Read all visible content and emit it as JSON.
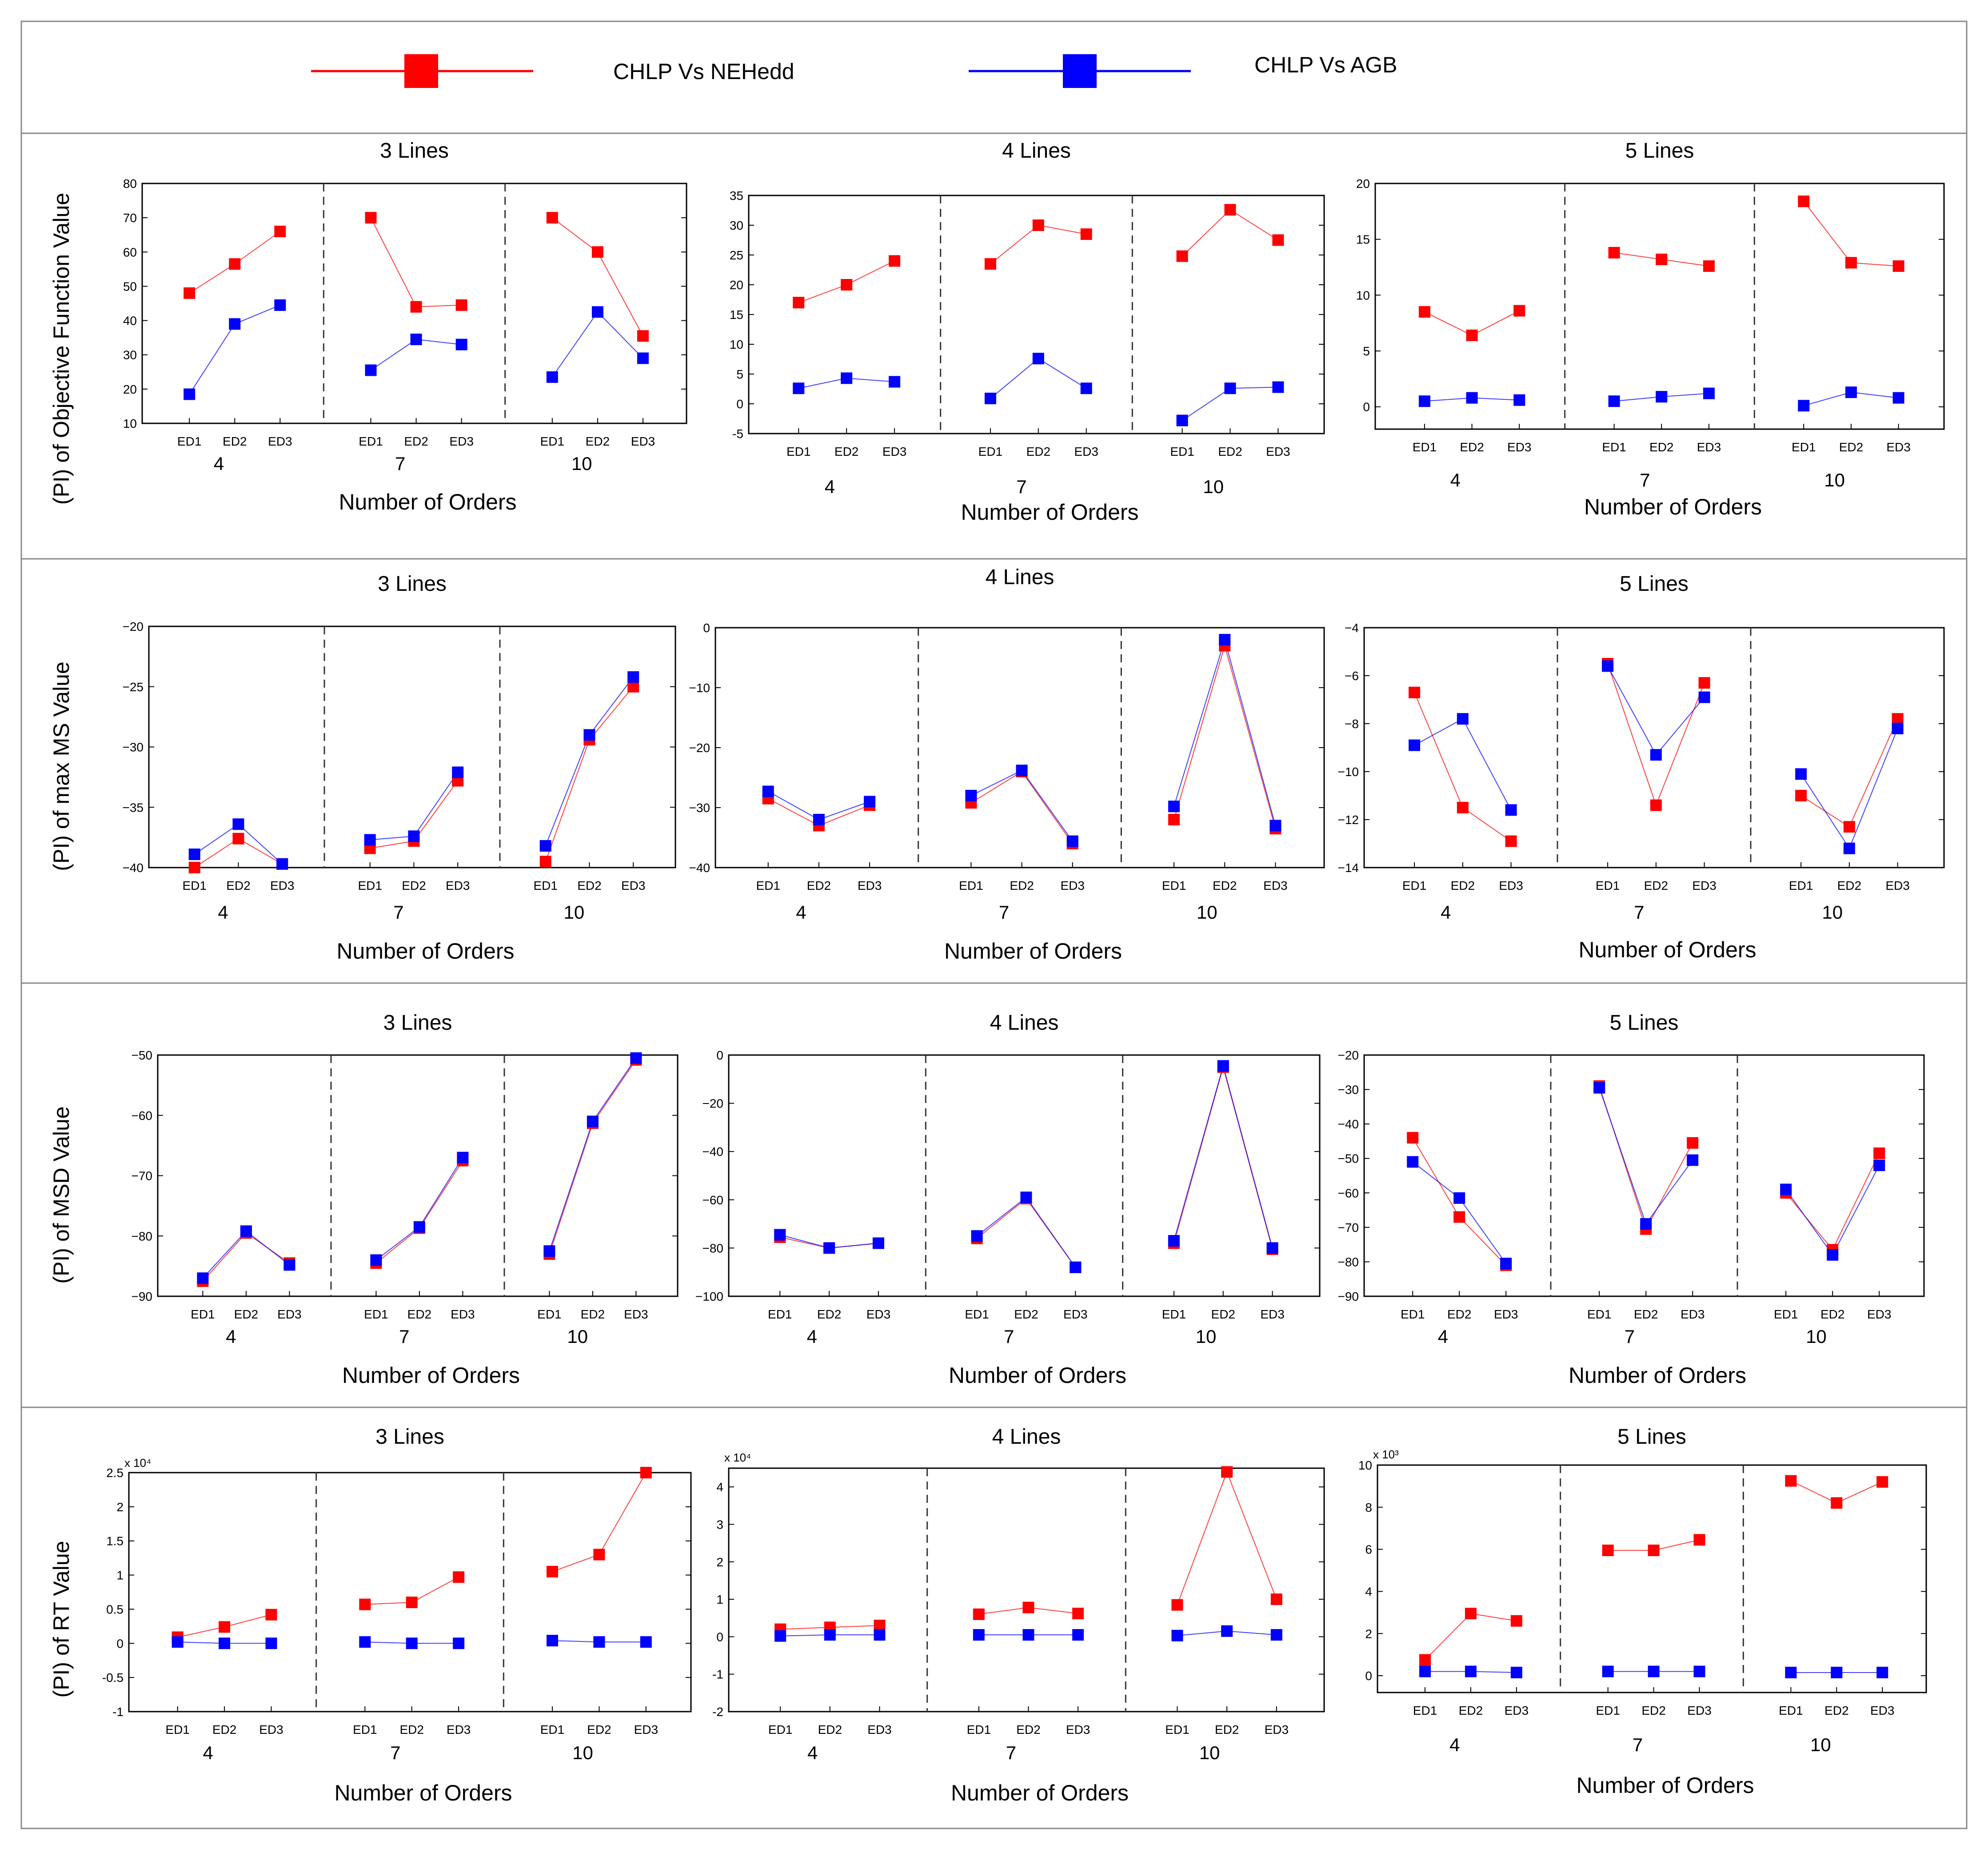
{
  "legend": {
    "items": [
      {
        "label": "CHLP Vs NEHedd",
        "color": "#ff0000"
      },
      {
        "label": "CHLP Vs AGB",
        "color": "#0000ff"
      }
    ]
  },
  "row_labels": [
    "(PI) of Objective Function Value",
    "(PI) of max MS Value",
    "(PI) of  MSD Value",
    "(PI) of  RT Value"
  ],
  "ed_labels": [
    "ED1",
    "ED2",
    "ED3"
  ],
  "group_labels": [
    "4",
    "7",
    "10"
  ],
  "xlabel": "Number of Orders",
  "colors": {
    "red": "#ff0000",
    "blue": "#0000ff",
    "frame": "#000000",
    "divider": "#333333"
  },
  "chart_data": [
    {
      "type": "line",
      "title": "3 Lines",
      "ylim": [
        10,
        80
      ],
      "yticks": [
        10,
        20,
        30,
        40,
        50,
        60,
        70,
        80
      ],
      "tick_labels": [
        "10",
        "20",
        "30",
        "40",
        "50",
        "60",
        "70",
        "80"
      ],
      "multiplier": "",
      "series": [
        {
          "name": "CHLP Vs NEHedd",
          "values": [
            48,
            56.5,
            66,
            70,
            44,
            44.5,
            70,
            60,
            35.5
          ]
        },
        {
          "name": "CHLP Vs AGB",
          "values": [
            18.5,
            39,
            44.5,
            25.5,
            34.5,
            33,
            23.5,
            42.5,
            29
          ]
        }
      ]
    },
    {
      "type": "line",
      "title": "4 Lines",
      "ylim": [
        -5,
        35
      ],
      "yticks": [
        -5,
        0,
        5,
        10,
        15,
        20,
        25,
        30,
        35
      ],
      "tick_labels": [
        "-5",
        "0",
        "5",
        "10",
        "15",
        "20",
        "25",
        "30",
        "35"
      ],
      "multiplier": "",
      "series": [
        {
          "name": "CHLP Vs NEHedd",
          "values": [
            17,
            20,
            24,
            23.5,
            30,
            28.5,
            24.8,
            32.6,
            27.5
          ]
        },
        {
          "name": "CHLP Vs AGB",
          "values": [
            2.6,
            4.3,
            3.7,
            0.9,
            7.6,
            2.6,
            -2.8,
            2.6,
            2.8
          ]
        }
      ]
    },
    {
      "type": "line",
      "title": "5 Lines",
      "ylim": [
        -2,
        20
      ],
      "yticks": [
        0,
        5,
        10,
        15,
        20
      ],
      "tick_labels": [
        "0",
        "5",
        "10",
        "15",
        "20"
      ],
      "multiplier": "",
      "series": [
        {
          "name": "CHLP Vs NEHedd",
          "values": [
            8.5,
            6.4,
            8.6,
            13.8,
            13.2,
            12.6,
            18.4,
            12.9,
            12.6
          ]
        },
        {
          "name": "CHLP Vs AGB",
          "values": [
            0.5,
            0.8,
            0.6,
            0.5,
            0.9,
            1.2,
            0.1,
            1.3,
            0.8
          ]
        }
      ]
    },
    {
      "type": "line",
      "title": "3 Lines",
      "ylim": [
        -40,
        -20
      ],
      "yticks": [
        -40,
        -35,
        -30,
        -25,
        -20
      ],
      "tick_labels": [
        "−40",
        "−35",
        "−30",
        "−25",
        "−20"
      ],
      "multiplier": "",
      "series": [
        {
          "name": "CHLP Vs NEHedd",
          "values": [
            -40,
            -37.6,
            -39.7,
            -38.4,
            -37.8,
            -32.8,
            -39.5,
            -29.4,
            -25
          ]
        },
        {
          "name": "CHLP Vs AGB",
          "values": [
            -38.9,
            -36.4,
            -39.7,
            -37.7,
            -37.4,
            -32.1,
            -38.2,
            -29,
            -24.2
          ]
        }
      ]
    },
    {
      "type": "line",
      "title": "4 Lines",
      "ylim": [
        -40,
        0
      ],
      "yticks": [
        -40,
        -30,
        -20,
        -10,
        0
      ],
      "tick_labels": [
        "−40",
        "−30",
        "−20",
        "−10",
        "0"
      ],
      "multiplier": "",
      "series": [
        {
          "name": "CHLP Vs NEHedd",
          "values": [
            -28.5,
            -33,
            -29.6,
            -29.2,
            -24,
            -36,
            -32,
            -3,
            -33.5
          ]
        },
        {
          "name": "CHLP Vs AGB",
          "values": [
            -27.3,
            -32,
            -29,
            -28,
            -23.8,
            -35.6,
            -29.8,
            -2,
            -33
          ]
        }
      ]
    },
    {
      "type": "line",
      "title": "5 Lines",
      "ylim": [
        -14,
        -4
      ],
      "yticks": [
        -14,
        -12,
        -10,
        -8,
        -6,
        -4
      ],
      "tick_labels": [
        "−14",
        "−12",
        "−10",
        "−8",
        "−6",
        "−4"
      ],
      "multiplier": "",
      "series": [
        {
          "name": "CHLP Vs NEHedd",
          "values": [
            -6.7,
            -11.5,
            -12.9,
            -5.5,
            -11.4,
            -6.3,
            -11,
            -12.3,
            -7.8
          ]
        },
        {
          "name": "CHLP Vs AGB",
          "values": [
            -8.9,
            -7.8,
            -11.6,
            -5.6,
            -9.3,
            -6.9,
            -10.1,
            -13.2,
            -8.2
          ]
        }
      ]
    },
    {
      "type": "line",
      "title": "3 Lines",
      "ylim": [
        -90,
        -50
      ],
      "yticks": [
        -90,
        -80,
        -70,
        -60,
        -50
      ],
      "tick_labels": [
        "−90",
        "−80",
        "−70",
        "−60",
        "−50"
      ],
      "multiplier": "",
      "series": [
        {
          "name": "CHLP Vs NEHedd",
          "values": [
            -87.5,
            -79.5,
            -84.5,
            -84.5,
            -78.7,
            -67.5,
            -83,
            -61.3,
            -50.8
          ]
        },
        {
          "name": "CHLP Vs AGB",
          "values": [
            -87,
            -79.2,
            -84.8,
            -84,
            -78.5,
            -67,
            -82.5,
            -61,
            -50.5
          ]
        }
      ]
    },
    {
      "type": "line",
      "title": "4 Lines",
      "ylim": [
        -100,
        0
      ],
      "yticks": [
        -100,
        -80,
        -60,
        -40,
        -20,
        0
      ],
      "tick_labels": [
        "−100",
        "−80",
        "−60",
        "−40",
        "−20",
        "0"
      ],
      "multiplier": "",
      "series": [
        {
          "name": "CHLP Vs NEHedd",
          "values": [
            -75.5,
            -80,
            -78,
            -76,
            -59.5,
            -88,
            -78,
            -5,
            -80.5
          ]
        },
        {
          "name": "CHLP Vs AGB",
          "values": [
            -74.5,
            -80,
            -78,
            -75,
            -59,
            -88,
            -77,
            -4.5,
            -80
          ]
        }
      ]
    },
    {
      "type": "line",
      "title": "5 Lines",
      "ylim": [
        -90,
        -20
      ],
      "yticks": [
        -90,
        -80,
        -70,
        -60,
        -50,
        -40,
        -30,
        -20
      ],
      "tick_labels": [
        "−90",
        "−80",
        "−70",
        "−60",
        "−50",
        "−40",
        "−30",
        "−20"
      ],
      "multiplier": "",
      "series": [
        {
          "name": "CHLP Vs NEHedd",
          "values": [
            -44,
            -67,
            -81,
            -29,
            -70.5,
            -45.5,
            -60,
            -76.5,
            -48.5
          ]
        },
        {
          "name": "CHLP Vs AGB",
          "values": [
            -51,
            -61.5,
            -80.5,
            -29.5,
            -69,
            -50.5,
            -59,
            -78,
            -52
          ]
        }
      ]
    },
    {
      "type": "line",
      "title": "3 Lines",
      "ylim": [
        -1,
        2.5
      ],
      "yticks": [
        -1,
        -0.5,
        0,
        0.5,
        1,
        1.5,
        2,
        2.5
      ],
      "tick_labels": [
        "-1",
        "-0.5",
        "0",
        "0.5",
        "1",
        "1.5",
        "2",
        "2.5"
      ],
      "multiplier": "x 10⁴",
      "series": [
        {
          "name": "CHLP Vs NEHedd",
          "values": [
            0.09,
            0.24,
            0.42,
            0.57,
            0.6,
            0.97,
            1.05,
            1.3,
            2.5
          ]
        },
        {
          "name": "CHLP Vs AGB",
          "values": [
            0.02,
            0,
            0,
            0.02,
            0,
            0,
            0.04,
            0.02,
            0.02
          ]
        }
      ]
    },
    {
      "type": "line",
      "title": "4 Lines",
      "ylim": [
        -2,
        4.5
      ],
      "yticks": [
        -2,
        -1,
        0,
        1,
        2,
        3,
        4
      ],
      "tick_labels": [
        "-2",
        "-1",
        "0",
        "1",
        "2",
        "3",
        "4"
      ],
      "multiplier": "x 10⁴",
      "series": [
        {
          "name": "CHLP Vs NEHedd",
          "values": [
            0.2,
            0.25,
            0.3,
            0.6,
            0.78,
            0.62,
            0.85,
            4.4,
            1
          ]
        },
        {
          "name": "CHLP Vs AGB",
          "values": [
            0.02,
            0.05,
            0.05,
            0.05,
            0.05,
            0.05,
            0.03,
            0.15,
            0.05
          ]
        }
      ]
    },
    {
      "type": "line",
      "title": "5 Lines",
      "ylim": [
        -0.8,
        10
      ],
      "yticks": [
        0,
        2,
        4,
        6,
        8,
        10
      ],
      "tick_labels": [
        "0",
        "2",
        "4",
        "6",
        "8",
        "10"
      ],
      "multiplier": "x 10³",
      "series": [
        {
          "name": "CHLP Vs NEHedd",
          "values": [
            0.75,
            2.95,
            2.6,
            5.95,
            5.95,
            6.45,
            9.25,
            8.2,
            9.2
          ]
        },
        {
          "name": "CHLP Vs AGB",
          "values": [
            0.2,
            0.2,
            0.15,
            0.2,
            0.2,
            0.2,
            0.15,
            0.15,
            0.15
          ]
        }
      ]
    }
  ]
}
